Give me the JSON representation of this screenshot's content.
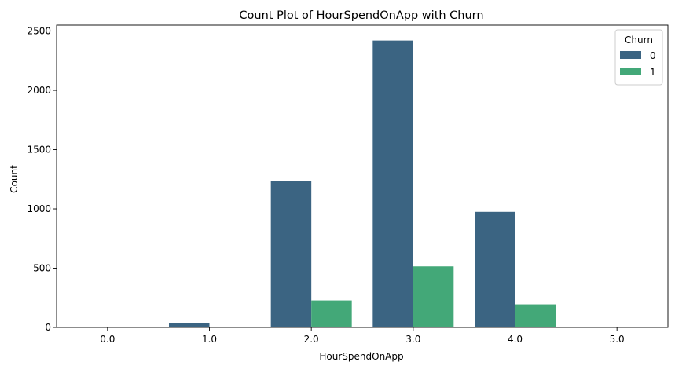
{
  "chart_data": {
    "type": "bar",
    "title": "Count Plot of HourSpendOnApp with Churn",
    "xlabel": "HourSpendOnApp",
    "ylabel": "Count",
    "categories": [
      "0.0",
      "1.0",
      "2.0",
      "3.0",
      "4.0",
      "5.0"
    ],
    "ylim": [
      0,
      2550
    ],
    "yticks": [
      0,
      500,
      1000,
      1500,
      2000,
      2500
    ],
    "grid": false,
    "legend": {
      "title": "Churn",
      "placement": "top-right"
    },
    "series": [
      {
        "name": "0",
        "color": "#3b6482",
        "values": [
          3,
          35,
          1235,
          2420,
          975,
          3
        ]
      },
      {
        "name": "1",
        "color": "#43a878",
        "values": [
          0,
          0,
          228,
          515,
          195,
          0
        ]
      }
    ]
  }
}
